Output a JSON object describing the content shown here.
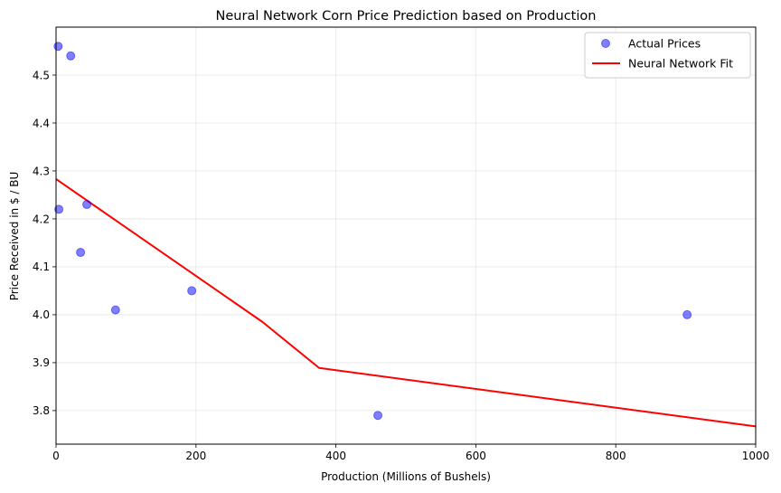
{
  "chart_data": {
    "type": "scatter",
    "title": "Neural Network Corn Price Prediction based on Production",
    "xlabel": "Production (Millions of Bushels)",
    "ylabel": "Price Received in $ / BU",
    "xlim": [
      0,
      1000
    ],
    "ylim": [
      3.73,
      4.6
    ],
    "xticks": [
      0,
      200,
      400,
      600,
      800,
      1000
    ],
    "xtick_labels": [
      "0",
      "200",
      "400",
      "600",
      "800",
      "1000"
    ],
    "yticks": [
      3.8,
      3.9,
      4.0,
      4.1,
      4.2,
      4.3,
      4.4,
      4.5
    ],
    "ytick_labels": [
      "3.8",
      "3.9",
      "4.0",
      "4.1",
      "4.2",
      "4.3",
      "4.4",
      "4.5"
    ],
    "grid": true,
    "legend_position": "top-right",
    "series": [
      {
        "name": "Actual Prices",
        "kind": "scatter",
        "color": "#0000ff",
        "points": [
          {
            "x": 3,
            "y": 4.56
          },
          {
            "x": 21,
            "y": 4.54
          },
          {
            "x": 4,
            "y": 4.22
          },
          {
            "x": 44,
            "y": 4.23
          },
          {
            "x": 35,
            "y": 4.13
          },
          {
            "x": 85,
            "y": 4.01
          },
          {
            "x": 194,
            "y": 4.05
          },
          {
            "x": 460,
            "y": 3.79
          },
          {
            "x": 902,
            "y": 4.0
          }
        ]
      },
      {
        "name": "Neural Network Fit",
        "kind": "line",
        "color": "#ff0000",
        "points": [
          {
            "x": 0,
            "y": 4.283
          },
          {
            "x": 295,
            "y": 3.985
          },
          {
            "x": 376,
            "y": 3.889
          },
          {
            "x": 1000,
            "y": 3.767
          }
        ]
      }
    ]
  }
}
